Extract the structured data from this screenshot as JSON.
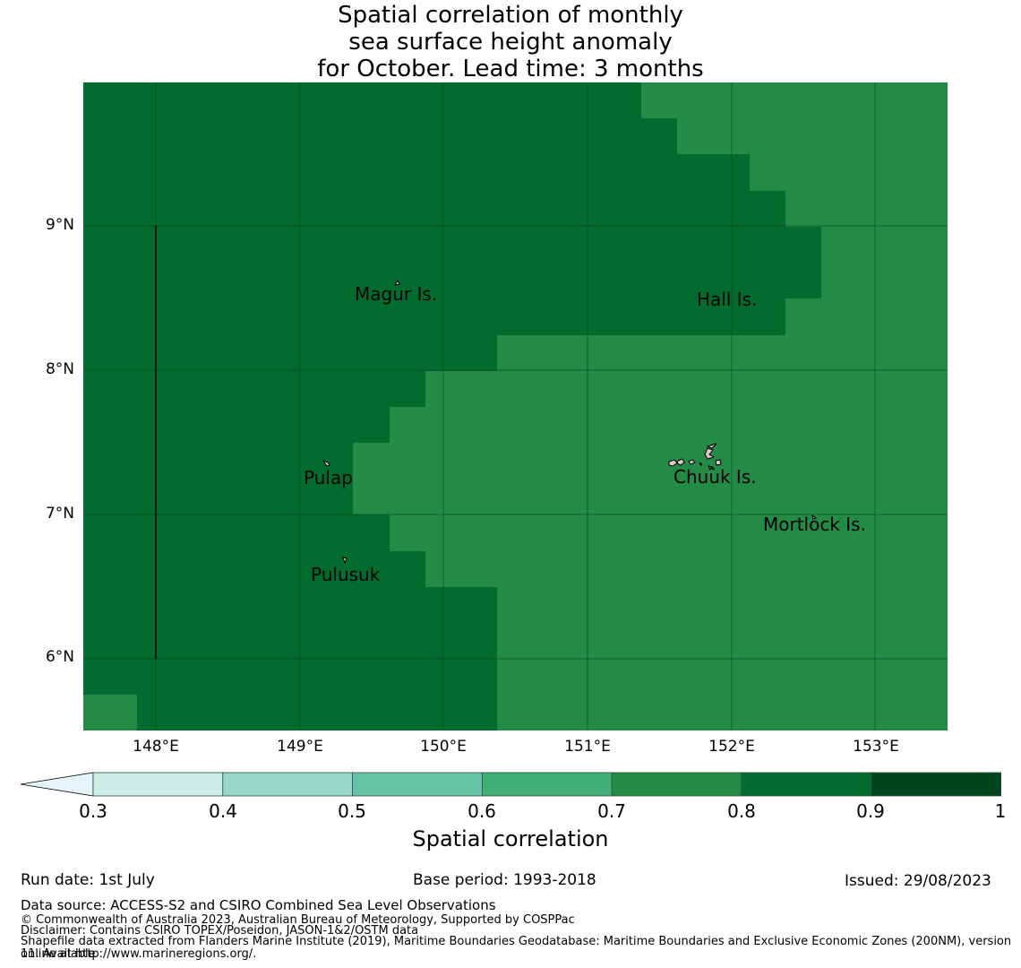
{
  "title": "Spatial correlation of monthly\nsea surface height anomaly\nfor October. Lead time: 3 months",
  "map": {
    "lat_ticks": [
      "9°N",
      "8°N",
      "7°N",
      "6°N"
    ],
    "lon_ticks": [
      "148°E",
      "149°E",
      "150°E",
      "151°E",
      "152°E",
      "153°E"
    ],
    "places": [
      "Magur Is.",
      "Hall Is.",
      "Pulap",
      "Chuuk Is.",
      "Mortlock Is.",
      "Pulusuk"
    ],
    "colors": {
      "band_0_8_0_9": "#016c2d",
      "band_0_7_0_8": "#238b45",
      "grid": "#0a3d1c"
    }
  },
  "colorbar": {
    "label": "Spatial correlation",
    "ticks": [
      "0.3",
      "0.4",
      "0.5",
      "0.6",
      "0.7",
      "0.8",
      "0.9",
      "1"
    ],
    "colors": [
      "#e5f5f9",
      "#ccece6",
      "#99d8c9",
      "#66c2a4",
      "#41ae76",
      "#238b45",
      "#016c2d",
      "#00441b"
    ]
  },
  "footer": {
    "run_date": "Run date: 1st July",
    "base_period": "Base period: 1993-2018",
    "issued": "Issued: 29/08/2023",
    "data_source": "Data source: ACCESS-S2 and CSIRO Combined Sea Level Observations",
    "copyright": "© Commonwealth of Australia 2023, Australian Bureau of Meteorology, Supported by COSPPac",
    "disclaimer": "Disclaimer: Contains CSIRO TOPEX/Poseidon, JASON-1&2/OSTM data",
    "shapefile_1": "Shapefile data extracted from Flanders Marine Institute (2019), Maritime Boundaries Geodatabase: Maritime Boundaries and Exclusive Economic Zones (200NM), version 11. Available",
    "shapefile_2": "online at http://www.marineregions.org/."
  }
}
